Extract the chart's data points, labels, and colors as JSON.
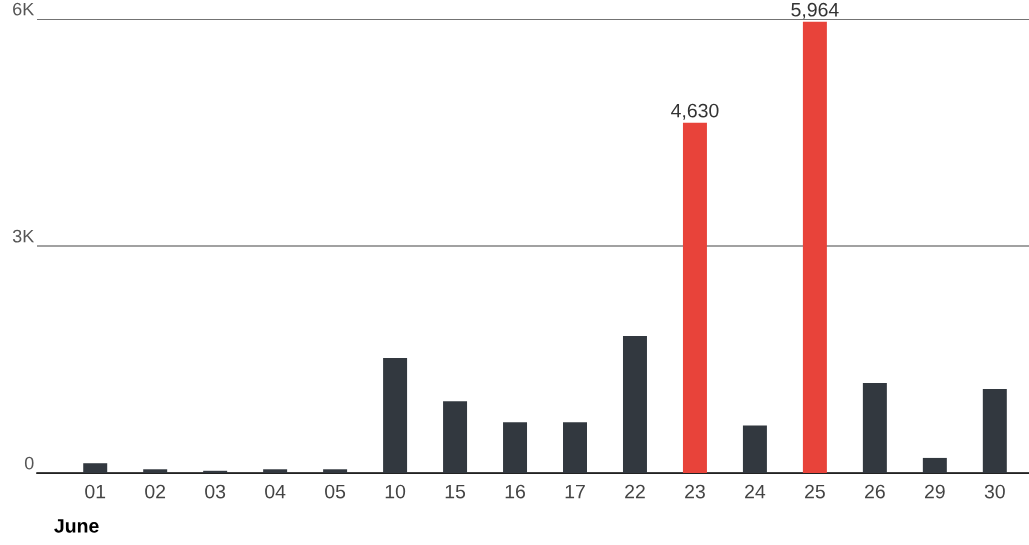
{
  "chart_data": {
    "type": "bar",
    "categories": [
      "01",
      "02",
      "03",
      "04",
      "05",
      "10",
      "15",
      "16",
      "17",
      "22",
      "23",
      "24",
      "25",
      "26",
      "29",
      "30"
    ],
    "values": [
      130,
      50,
      30,
      50,
      50,
      1520,
      950,
      670,
      670,
      1810,
      4630,
      630,
      5964,
      1190,
      200,
      1110
    ],
    "colors": [
      "#32383f",
      "#32383f",
      "#32383f",
      "#32383f",
      "#32383f",
      "#32383f",
      "#32383f",
      "#32383f",
      "#32383f",
      "#32383f",
      "#e8433a",
      "#32383f",
      "#e8433a",
      "#32383f",
      "#32383f",
      "#32383f"
    ],
    "value_labels": [
      null,
      null,
      null,
      null,
      null,
      null,
      null,
      null,
      null,
      null,
      "4,630",
      null,
      "5,964",
      null,
      null,
      null
    ],
    "xlabel": "June",
    "ylim": [
      0,
      6000
    ],
    "yticks": [
      {
        "value": 0,
        "label": "0"
      },
      {
        "value": 3000,
        "label": "3K"
      },
      {
        "value": 6000,
        "label": "6K"
      }
    ],
    "grid": "y"
  }
}
